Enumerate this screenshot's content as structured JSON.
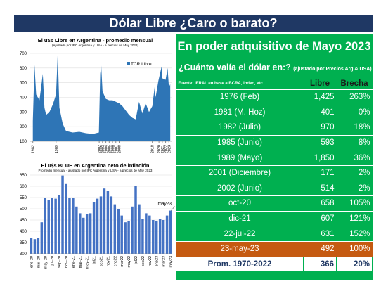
{
  "title": "Dólar Libre ¿Caro o barato?",
  "chart_data": [
    {
      "type": "area",
      "title": "El u$s Libre en Argentina - promedio mensual",
      "subtitle": "(Ajustado por IPC Argentina y USA - a precios de May 2023)",
      "x": [
        1982,
        1982.5,
        1983,
        1984,
        1985,
        1985.5,
        1986,
        1987,
        1988,
        1989,
        1989.5,
        1990,
        1991,
        1992,
        1994,
        1996,
        1998,
        2000,
        2001.9,
        2002.3,
        2002.6,
        2003,
        2004,
        2005,
        2006,
        2007,
        2008,
        2009,
        2010,
        2011,
        2012,
        2013,
        2014,
        2015,
        2016,
        2017,
        2018,
        2018.7,
        2019,
        2019.8,
        2020,
        2020.8,
        2021,
        2022,
        2022.6,
        2023,
        2023.4
      ],
      "series": [
        {
          "name": "TCR Libre",
          "color": "#2e75b6",
          "values": [
            240,
            620,
            420,
            380,
            560,
            330,
            280,
            300,
            350,
            420,
            700,
            330,
            220,
            170,
            160,
            165,
            155,
            150,
            160,
            560,
            620,
            440,
            390,
            380,
            380,
            370,
            360,
            340,
            310,
            280,
            260,
            250,
            370,
            290,
            360,
            300,
            340,
            470,
            400,
            510,
            530,
            610,
            530,
            520,
            600,
            470,
            490
          ]
        }
      ],
      "xlim": [
        1981,
        2024
      ],
      "xticks": [
        1982,
        1989,
        2002,
        2003,
        2004,
        2005,
        2006,
        2007,
        2008,
        2018,
        2020,
        2021,
        2022,
        2023
      ],
      "ylim": [
        100,
        700
      ],
      "yticks": [
        100,
        200,
        300,
        400,
        500,
        600,
        700
      ],
      "grid": true
    },
    {
      "type": "bar",
      "title": "El u$s BLUE en Argentina neto de inflación",
      "subtitle": "Promedio mensual - ajustado por IPC Argentina y USA - a precios de May 2023",
      "categories": [
        "ene-20",
        null,
        "mar-20",
        null,
        "may-20",
        null,
        "jul-20",
        null,
        "sep-20",
        null,
        "nov-20",
        null,
        "ene-21",
        null,
        "mar-21",
        null,
        "may-21",
        null,
        "jul21",
        null,
        "sep21",
        null,
        "nov21",
        null,
        "ene22",
        null,
        "mar22",
        null,
        "may22",
        null,
        "jul22",
        null,
        "sep22",
        null,
        "nov22",
        null,
        "ene23",
        null,
        "mar23",
        null,
        "may23"
      ],
      "values": [
        370,
        365,
        370,
        440,
        548,
        540,
        548,
        545,
        560,
        648,
        610,
        550,
        550,
        510,
        480,
        460,
        475,
        480,
        530,
        545,
        555,
        590,
        580,
        555,
        520,
        500,
        470,
        440,
        445,
        510,
        600,
        520,
        455,
        480,
        470,
        450,
        445,
        455,
        450,
        470,
        492
      ],
      "color": "#4472c4",
      "annotation": "may23",
      "ylim": [
        300,
        650
      ],
      "yticks": [
        300,
        350,
        400,
        450,
        500,
        550,
        600,
        650
      ],
      "grid": true
    }
  ],
  "table": {
    "title": "En poder adquisitivo de Mayo 2023",
    "subtitle": "¿Cuánto valía el dólar en:?",
    "subtitle_note": "(ajustado por Precios Arg & USA)",
    "header": [
      "Fuente: IERAL en base a BCRA, Indec, etc.",
      "Libre",
      "Brecha"
    ],
    "rows": [
      [
        "1976 (Feb)",
        "1,425",
        "263%"
      ],
      [
        "1981 (M. Hoz)",
        "401",
        "0%"
      ],
      [
        "1982 (Julio)",
        "970",
        "18%"
      ],
      [
        "1985 (Junio)",
        "593",
        "8%"
      ],
      [
        "1989 (Mayo)",
        "1,850",
        "36%"
      ],
      [
        "2001 (Diciembre)",
        "171",
        "2%"
      ],
      [
        "2002 (Junio)",
        "514",
        "2%"
      ],
      [
        "oct-20",
        "658",
        "105%"
      ],
      [
        "dic-21",
        "607",
        "121%"
      ],
      [
        "22-jul-22",
        "631",
        "152%"
      ],
      [
        "23-may-23",
        "492",
        "100%"
      ]
    ],
    "highlight": {
      "row": 10,
      "color": "#c55a11"
    },
    "footer": [
      "Prom. 1970-2022",
      "366",
      "20%"
    ]
  }
}
